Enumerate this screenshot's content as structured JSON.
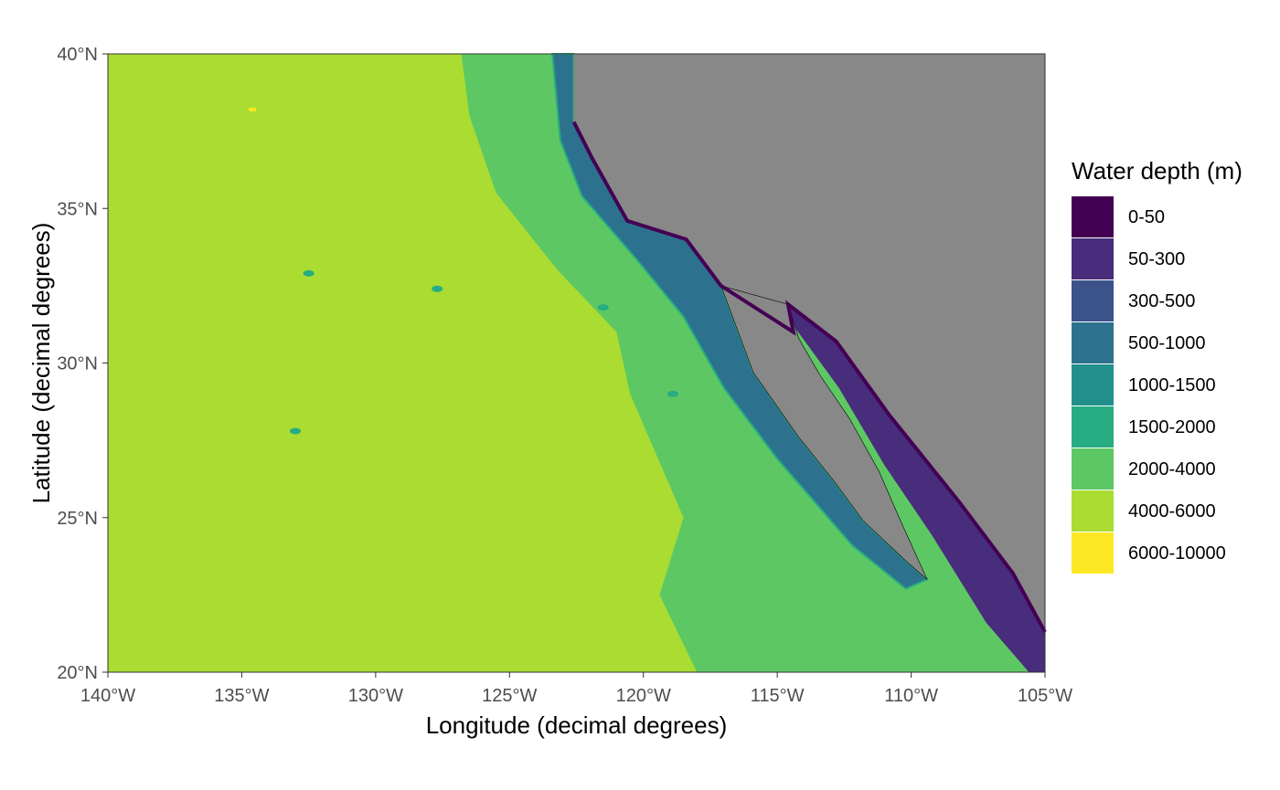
{
  "chart_data": {
    "type": "heatmap",
    "title": "",
    "xlabel": "Longitude (decimal degrees)",
    "ylabel": "Latitude (decimal degrees)",
    "xlim": [
      -140,
      -105
    ],
    "ylim": [
      20,
      40
    ],
    "x_ticks": [
      {
        "value": -140,
        "label": "140°W"
      },
      {
        "value": -135,
        "label": "135°W"
      },
      {
        "value": -130,
        "label": "130°W"
      },
      {
        "value": -125,
        "label": "125°W"
      },
      {
        "value": -120,
        "label": "120°W"
      },
      {
        "value": -115,
        "label": "115°W"
      },
      {
        "value": -110,
        "label": "110°W"
      },
      {
        "value": -105,
        "label": "105°W"
      }
    ],
    "y_ticks": [
      {
        "value": 20,
        "label": "20°N"
      },
      {
        "value": 25,
        "label": "25°N"
      },
      {
        "value": 30,
        "label": "30°N"
      },
      {
        "value": 35,
        "label": "35°N"
      },
      {
        "value": 40,
        "label": "40°N"
      }
    ],
    "grid": true,
    "legend": {
      "title": "Water depth (m)",
      "position": "right",
      "classes": [
        {
          "label": "0-50",
          "color": "#440154"
        },
        {
          "label": "50-300",
          "color": "#472D7B"
        },
        {
          "label": "300-500",
          "color": "#3B528B"
        },
        {
          "label": "500-1000",
          "color": "#2C728E"
        },
        {
          "label": "1000-1500",
          "color": "#21908C"
        },
        {
          "label": "1500-2000",
          "color": "#27AD81"
        },
        {
          "label": "2000-4000",
          "color": "#5DC863"
        },
        {
          "label": "4000-6000",
          "color": "#AADC32"
        },
        {
          "label": "6000-10000",
          "color": "#FDE725"
        }
      ]
    },
    "land_color": "#888888",
    "regions": {
      "land": [
        [
          -122.6,
          40
        ],
        [
          -105,
          40
        ],
        [
          -105,
          21.3
        ],
        [
          -106.2,
          23.2
        ],
        [
          -108.2,
          25.5
        ],
        [
          -110.8,
          28.3
        ],
        [
          -112.8,
          30.7
        ],
        [
          -114.6,
          31.9
        ],
        [
          -114.4,
          31
        ],
        [
          -117.1,
          32.5
        ],
        [
          -118.4,
          34
        ],
        [
          -120.6,
          34.6
        ],
        [
          -121.9,
          36.6
        ],
        [
          -122.6,
          37.8
        ]
      ],
      "baja": [
        [
          -117.1,
          32.5
        ],
        [
          -114.6,
          31.9
        ],
        [
          -114.2,
          30.8
        ],
        [
          -113.4,
          29.6
        ],
        [
          -112.3,
          28.2
        ],
        [
          -111.2,
          26.5
        ],
        [
          -110.4,
          24.9
        ],
        [
          -109.4,
          23
        ],
        [
          -110.2,
          23.6
        ],
        [
          -111.8,
          24.9
        ],
        [
          -112.9,
          26.2
        ],
        [
          -114.2,
          27.6
        ],
        [
          -115.9,
          29.7
        ]
      ],
      "shelf_zone": [
        [
          -123.4,
          40
        ],
        [
          -122.6,
          40
        ],
        [
          -122.6,
          37.8
        ],
        [
          -121.9,
          36.6
        ],
        [
          -120.6,
          34.6
        ],
        [
          -118.4,
          34
        ],
        [
          -117.1,
          32.5
        ],
        [
          -115.9,
          29.7
        ],
        [
          -114.2,
          27.6
        ],
        [
          -112.9,
          26.2
        ],
        [
          -111.8,
          24.9
        ],
        [
          -110.2,
          23.6
        ],
        [
          -109.4,
          23
        ],
        [
          -110.2,
          22.7
        ],
        [
          -112.2,
          24.1
        ],
        [
          -113.5,
          25.4
        ],
        [
          -115,
          26.9
        ],
        [
          -117,
          29.2
        ],
        [
          -118.5,
          31.5
        ],
        [
          -120.3,
          33.4
        ],
        [
          -122.3,
          35.4
        ],
        [
          -123.1,
          37.2
        ]
      ],
      "gulf_shelf": [
        [
          -114.6,
          31.9
        ],
        [
          -112.8,
          30.7
        ],
        [
          -110.8,
          28.3
        ],
        [
          -108.2,
          25.5
        ],
        [
          -106.2,
          23.2
        ],
        [
          -105,
          21.3
        ],
        [
          -105,
          20
        ],
        [
          -105.6,
          20
        ],
        [
          -107.2,
          21.6
        ],
        [
          -109.2,
          24.4
        ],
        [
          -111,
          26.7
        ],
        [
          -112.7,
          29.2
        ],
        [
          -114.3,
          31.1
        ]
      ],
      "abyssal_4000": [
        [
          -140,
          40
        ],
        [
          -126.8,
          40
        ],
        [
          -126.5,
          38
        ],
        [
          -125.5,
          35.5
        ],
        [
          -123.2,
          33
        ],
        [
          -121,
          31
        ],
        [
          -120.5,
          29
        ],
        [
          -119.5,
          27
        ],
        [
          -118.5,
          25
        ],
        [
          -119.4,
          22.5
        ],
        [
          -118,
          20
        ],
        [
          -140,
          20
        ]
      ],
      "seamount_patches": [
        [
          -132.5,
          32.9
        ],
        [
          -127.7,
          32.4
        ],
        [
          -121.5,
          31.8
        ],
        [
          -118.9,
          29
        ],
        [
          -133,
          27.8
        ]
      ],
      "deep_spot_6000": [
        -134.6,
        38.2
      ]
    }
  }
}
